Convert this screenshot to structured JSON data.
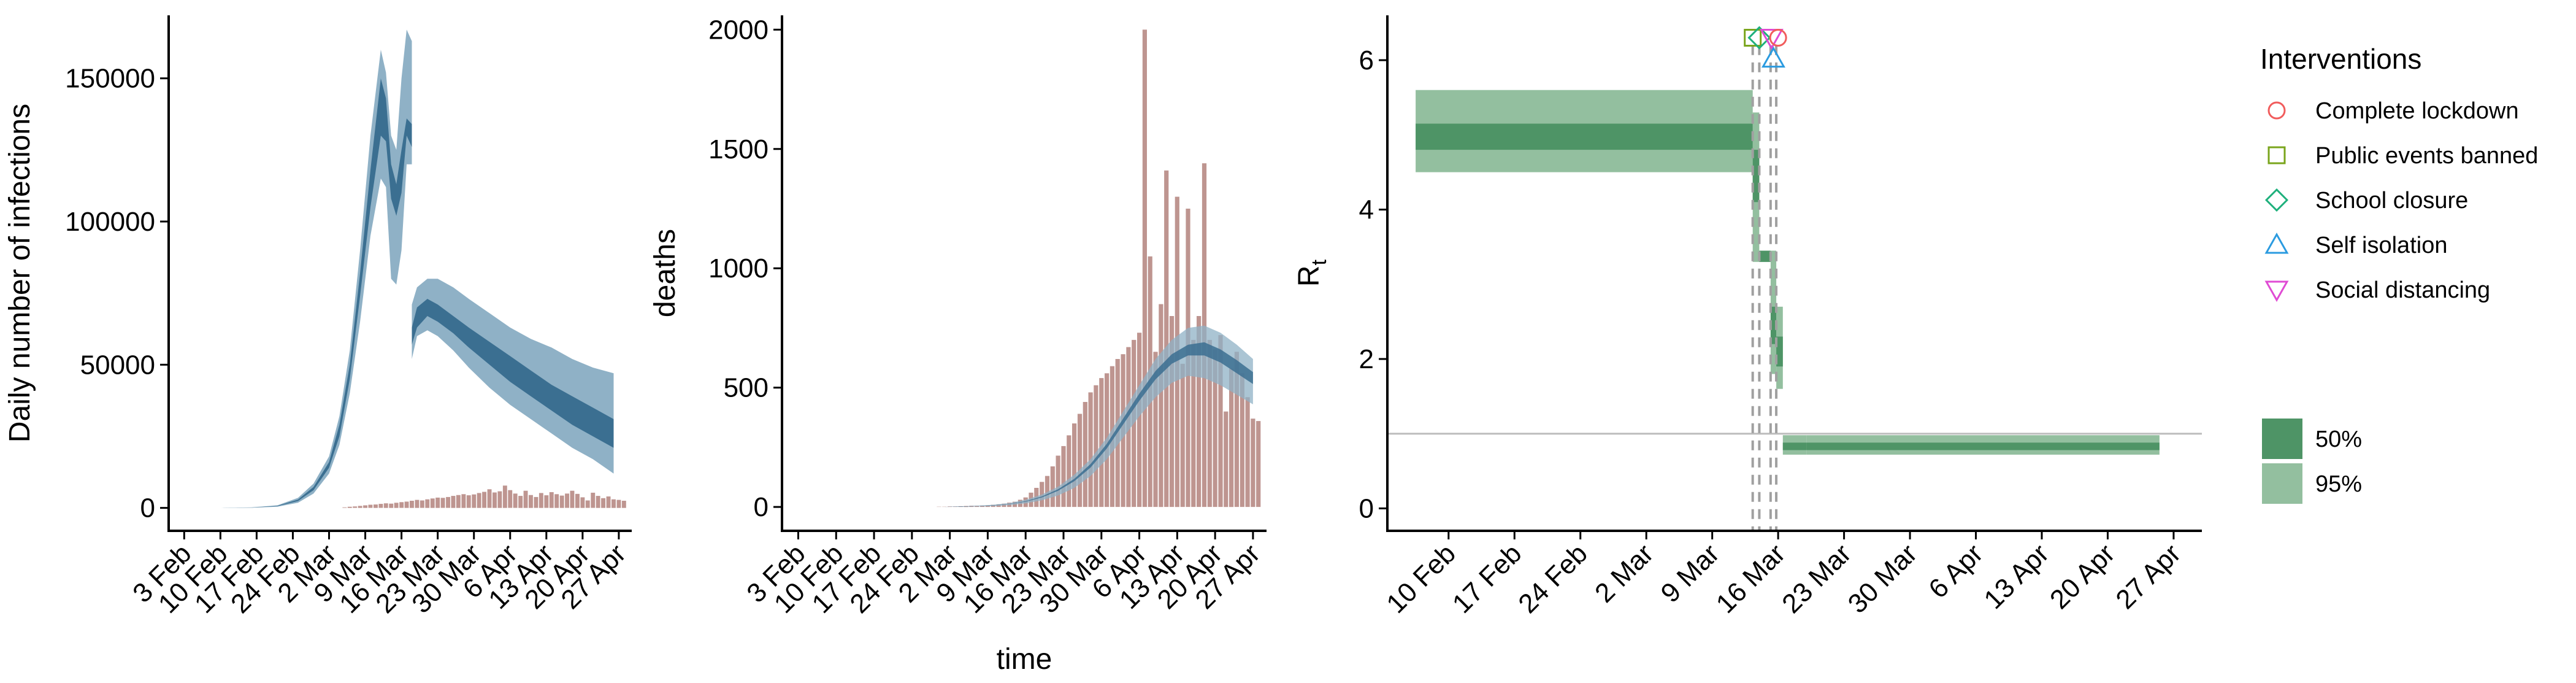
{
  "colors": {
    "band_blue_95": "#8fb1c6",
    "band_blue_50": "#3b6f91",
    "mean_blue": "#2e5f80",
    "bar_brown": "#b78a84",
    "green_95": "#93bf9f",
    "green_50": "#4e9466",
    "vline_gray": "#a0a0a0",
    "hline_gray": "#bdbdbd",
    "int_lockdown": "#f15c5c",
    "int_events": "#7aa51c",
    "int_school": "#1eb07c",
    "int_isolation": "#2b9be0",
    "int_distancing": "#e04bd4"
  },
  "chart_data": [
    {
      "type": "area",
      "ylabel": "Daily number of infections",
      "xlabel": "",
      "x_tick_labels": [
        "3 Feb",
        "10 Feb",
        "17 Feb",
        "24 Feb",
        "2 Mar",
        "9 Mar",
        "16 Mar",
        "23 Mar",
        "30 Mar",
        "6 Apr",
        "13 Apr",
        "20 Apr",
        "27 Apr"
      ],
      "x_tick_days": [
        3,
        10,
        17,
        24,
        31,
        38,
        45,
        52,
        59,
        66,
        73,
        80,
        87
      ],
      "ylim": [
        -8000,
        172000
      ],
      "y_ticks": [
        0,
        50000,
        100000,
        150000
      ],
      "y_tick_labels": [
        "0",
        "50000",
        "100000",
        "150000"
      ],
      "grid": false,
      "series": [
        {
          "kind": "band",
          "style": "95",
          "segments": [
            {
              "x": [
                10,
                16,
                21,
                25,
                28,
                31,
                33,
                35,
                37,
                39,
                41,
                42,
                43,
                44,
                45,
                46,
                47
              ],
              "lower": [
                0,
                50,
                400,
                1800,
                5000,
                12000,
                22000,
                40000,
                65000,
                95000,
                115000,
                112000,
                80000,
                78000,
                90000,
                120000,
                120000
              ],
              "upper": [
                0,
                200,
                900,
                3500,
                8500,
                18000,
                32000,
                55000,
                90000,
                130000,
                160000,
                152000,
                130000,
                125000,
                150000,
                167000,
                163000
              ]
            },
            {
              "x": [
                47,
                48,
                50,
                52,
                55,
                58,
                62,
                66,
                70,
                74,
                78,
                82,
                86
              ],
              "lower": [
                52000,
                60000,
                62000,
                60000,
                55000,
                49000,
                42000,
                36000,
                31000,
                26000,
                21000,
                17000,
                12000
              ],
              "upper": [
                71000,
                77000,
                80000,
                80000,
                77000,
                73000,
                68000,
                63000,
                59000,
                56000,
                52000,
                49000,
                47000
              ]
            }
          ]
        },
        {
          "kind": "band",
          "style": "50",
          "segments": [
            {
              "x": [
                10,
                16,
                21,
                25,
                28,
                31,
                33,
                35,
                37,
                39,
                41,
                42,
                43,
                44,
                45,
                46,
                47
              ],
              "lower": [
                0,
                80,
                600,
                2400,
                6200,
                14000,
                25000,
                45000,
                74000,
                105000,
                130000,
                128000,
                108000,
                102000,
                110000,
                130000,
                126000
              ],
              "upper": [
                0,
                120,
                750,
                2900,
                7300,
                16000,
                29000,
                50000,
                82000,
                118000,
                150000,
                143000,
                120000,
                113000,
                125000,
                136000,
                134000
              ]
            },
            {
              "x": [
                47,
                48,
                50,
                52,
                55,
                58,
                62,
                66,
                70,
                74,
                78,
                82,
                86
              ],
              "lower": [
                57000,
                63000,
                67000,
                65000,
                61000,
                56000,
                50000,
                44000,
                39000,
                34000,
                29000,
                25000,
                21000
              ],
              "upper": [
                63000,
                70000,
                73000,
                71000,
                67000,
                63000,
                58000,
                53000,
                48000,
                43000,
                39000,
                35000,
                31000
              ]
            }
          ]
        }
      ],
      "bars": {
        "x_start_day": 34,
        "values": [
          200,
          400,
          500,
          700,
          900,
          1100,
          1200,
          1400,
          1600,
          1500,
          1800,
          2000,
          2200,
          2500,
          2800,
          2600,
          3000,
          3300,
          3600,
          3500,
          3800,
          4200,
          4500,
          4800,
          4400,
          4700,
          5200,
          5600,
          6500,
          5400,
          5800,
          7800,
          6200,
          5000,
          4200,
          6000,
          4500,
          3800,
          5200,
          4400,
          5500,
          4800,
          4300,
          5000,
          6000,
          4900,
          3700,
          2600,
          5300,
          4200,
          3400,
          4000,
          3000,
          2800,
          2500
        ]
      }
    },
    {
      "type": "bar",
      "xlabel": "time",
      "ylabel": "deaths",
      "x_tick_labels": [
        "3 Feb",
        "10 Feb",
        "17 Feb",
        "24 Feb",
        "2 Mar",
        "9 Mar",
        "16 Mar",
        "23 Mar",
        "30 Mar",
        "6 Apr",
        "13 Apr",
        "20 Apr",
        "27 Apr"
      ],
      "x_tick_days": [
        3,
        10,
        17,
        24,
        31,
        38,
        45,
        52,
        59,
        66,
        73,
        80,
        87
      ],
      "ylim": [
        -100,
        2060
      ],
      "y_ticks": [
        0,
        500,
        1000,
        1500,
        2000
      ],
      "y_tick_labels": [
        "0",
        "500",
        "1000",
        "1500",
        "2000"
      ],
      "grid": false,
      "bars": {
        "x_start_day": 28,
        "values": [
          0,
          1,
          1,
          2,
          2,
          3,
          4,
          5,
          5,
          6,
          7,
          9,
          11,
          14,
          18,
          22,
          30,
          40,
          60,
          80,
          105,
          130,
          170,
          215,
          255,
          300,
          350,
          390,
          440,
          480,
          510,
          540,
          560,
          590,
          620,
          640,
          670,
          700,
          730,
          2000,
          1050,
          650,
          850,
          1410,
          800,
          1300,
          600,
          1250,
          700,
          800,
          1440,
          700,
          660,
          720,
          400,
          580,
          650,
          560,
          460,
          370,
          360
        ]
      },
      "series": [
        {
          "kind": "band",
          "style": "95",
          "x": [
            30,
            33,
            36,
            39,
            42,
            45,
            48,
            51,
            54,
            57,
            60,
            63,
            66,
            69,
            72,
            75,
            78,
            81,
            84,
            87
          ],
          "lower": [
            0,
            1,
            2,
            4,
            8,
            15,
            28,
            48,
            80,
            130,
            200,
            290,
            380,
            460,
            520,
            550,
            540,
            510,
            470,
            430
          ],
          "upper": [
            0,
            2,
            5,
            9,
            16,
            30,
            52,
            85,
            135,
            200,
            290,
            400,
            510,
            620,
            700,
            750,
            760,
            730,
            680,
            620
          ]
        },
        {
          "kind": "band",
          "style": "50",
          "x": [
            30,
            33,
            36,
            39,
            42,
            45,
            48,
            51,
            54,
            57,
            60,
            63,
            66,
            69,
            72,
            75,
            78,
            81,
            84,
            87
          ],
          "lower": [
            0,
            1,
            3,
            6,
            12,
            22,
            40,
            68,
            108,
            165,
            245,
            345,
            445,
            535,
            600,
            635,
            635,
            605,
            560,
            515
          ],
          "upper": [
            0,
            2,
            4,
            7,
            13,
            24,
            44,
            74,
            118,
            180,
            265,
            370,
            475,
            570,
            640,
            680,
            690,
            660,
            615,
            565
          ]
        }
      ]
    },
    {
      "type": "area",
      "xlabel": "",
      "ylabel": "Rt",
      "ylabel_main": "R",
      "ylabel_sub": "t",
      "x_tick_labels": [
        "10 Feb",
        "17 Feb",
        "24 Feb",
        "2 Mar",
        "9 Mar",
        "16 Mar",
        "23 Mar",
        "30 Mar",
        "6 Apr",
        "13 Apr",
        "20 Apr",
        "27 Apr"
      ],
      "x_tick_days": [
        10,
        17,
        24,
        31,
        38,
        45,
        52,
        59,
        66,
        73,
        80,
        87
      ],
      "ylim": [
        -0.3,
        6.6
      ],
      "y_ticks": [
        0,
        2,
        4,
        6
      ],
      "y_tick_labels": [
        "0",
        "2",
        "4",
        "6"
      ],
      "grid": false,
      "reference_line_y": 1,
      "intervention_days": [
        42.3,
        43.0,
        44.2,
        44.8
      ],
      "steps": [
        {
          "x0": 6.5,
          "x1": 42.3,
          "l95": 4.5,
          "u95": 5.6,
          "l50": 4.8,
          "u50": 5.15
        },
        {
          "x0": 42.3,
          "x1": 43.0,
          "l95": 3.3,
          "u95": 5.3,
          "l50": 4.1,
          "u50": 4.8
        },
        {
          "x0": 43.0,
          "x1": 44.2,
          "l95": 3.3,
          "u95": 3.45,
          "l50": 3.3,
          "u50": 3.45
        },
        {
          "x0": 44.2,
          "x1": 44.8,
          "l95": 1.8,
          "u95": 3.45,
          "l50": 2.2,
          "u50": 2.7
        },
        {
          "x0": 44.8,
          "x1": 45.5,
          "l95": 1.6,
          "u95": 2.7,
          "l50": 1.9,
          "u50": 2.3
        },
        {
          "x0": 45.5,
          "x1": 48.0,
          "l95": 0.72,
          "u95": 0.98,
          "l50": 0.78,
          "u50": 0.88
        },
        {
          "x0": 48.0,
          "x1": 85.5,
          "l95": 0.72,
          "u95": 0.98,
          "l50": 0.78,
          "u50": 0.88
        }
      ],
      "intervention_markers": [
        {
          "name": "Public events banned",
          "shape": "square",
          "day": 42.3,
          "y": 6.3
        },
        {
          "name": "School closure",
          "shape": "diamond",
          "day": 43.0,
          "y": 6.3
        },
        {
          "name": "Social distancing",
          "shape": "triangle-down",
          "day": 44.3,
          "y": 6.3
        },
        {
          "name": "Complete lockdown",
          "shape": "circle",
          "day": 45.0,
          "y": 6.3
        },
        {
          "name": "Self isolation",
          "shape": "triangle-up",
          "day": 44.5,
          "y": 6.02
        }
      ]
    }
  ],
  "legend": {
    "title": "Interventions",
    "items": [
      {
        "label": "Complete lockdown",
        "shape": "circle",
        "color_key": "int_lockdown"
      },
      {
        "label": "Public events banned",
        "shape": "square",
        "color_key": "int_events"
      },
      {
        "label": "School closure",
        "shape": "diamond",
        "color_key": "int_school"
      },
      {
        "label": "Self isolation",
        "shape": "triangle-up",
        "color_key": "int_isolation"
      },
      {
        "label": "Social distancing",
        "shape": "triangle-down",
        "color_key": "int_distancing"
      }
    ],
    "band_items": [
      {
        "label": "50%",
        "color_key": "green_50"
      },
      {
        "label": "95%",
        "color_key": "green_95"
      }
    ]
  }
}
